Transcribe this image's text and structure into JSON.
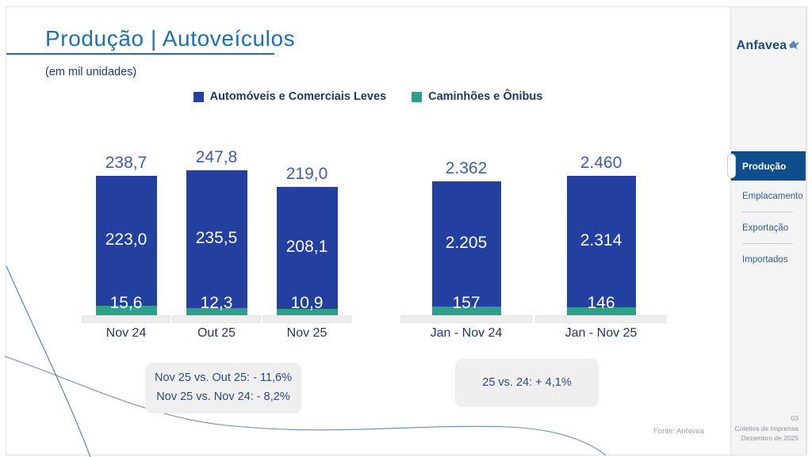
{
  "slide": {
    "title": "Produção | Autoveículos",
    "subtitle": "(em mil unidades)",
    "source": "Fonte: Anfavea",
    "logo_text": "Anfavea"
  },
  "legend": [
    {
      "label": "Automóveis e Comerciais Leves",
      "color": "#2340a0"
    },
    {
      "label": "Caminhões e Ônibus",
      "color": "#2aa189"
    }
  ],
  "chart_data": {
    "type": "bar",
    "stacked": true,
    "title": "Produção | Autoveículos",
    "unit": "mil unidades",
    "grid": false,
    "legend_position": "top",
    "series_names": [
      "Automóveis e Comerciais Leves",
      "Caminhões e Ônibus"
    ],
    "groups": [
      {
        "categories": [
          "Nov 24",
          "Out 25",
          "Nov 25"
        ],
        "series": [
          {
            "name": "Automóveis e Comerciais Leves",
            "values": [
              223.0,
              235.5,
              208.1
            ],
            "labels": [
              "223,0",
              "235,5",
              "208,1"
            ]
          },
          {
            "name": "Caminhões e Ônibus",
            "values": [
              15.6,
              12.3,
              10.9
            ],
            "labels": [
              "15,6",
              "12,3",
              "10,9"
            ]
          }
        ],
        "totals": [
          238.7,
          247.8,
          219.0
        ],
        "total_labels": [
          "238,7",
          "247,8",
          "219,0"
        ]
      },
      {
        "categories": [
          "Jan - Nov 24",
          "Jan - Nov 25"
        ],
        "series": [
          {
            "name": "Automóveis e Comerciais Leves",
            "values": [
              2205,
              2314
            ],
            "labels": [
              "2.205",
              "2.314"
            ]
          },
          {
            "name": "Caminhões e Ônibus",
            "values": [
              157,
              146
            ],
            "labels": [
              "157",
              "146"
            ]
          }
        ],
        "totals": [
          2362,
          2460
        ],
        "total_labels": [
          "2.362",
          "2.460"
        ]
      }
    ]
  },
  "annotations": [
    {
      "lines": [
        "Nov 25 vs. Out 25: - 11,6%",
        "Nov 25 vs. Nov 24: - 8,2%"
      ]
    },
    {
      "lines": [
        "25 vs. 24: + 4,1%"
      ]
    }
  ],
  "sidebar": {
    "items": [
      {
        "label": "Produção",
        "active": true
      },
      {
        "label": "Emplacamento",
        "active": false
      },
      {
        "label": "Exportação",
        "active": false
      },
      {
        "label": "Importados",
        "active": false
      }
    ],
    "footer": {
      "page": "03",
      "line1": "Coletiva de Imprensa",
      "line2": "Dezembro de 2025"
    }
  },
  "colors": {
    "bar_blue": "#2340a0",
    "bar_teal": "#2aa189",
    "title": "#1d70ae",
    "navy": "#1f3a68",
    "active_nav": "#0f4e8c",
    "total_label": "#3f5da8"
  }
}
